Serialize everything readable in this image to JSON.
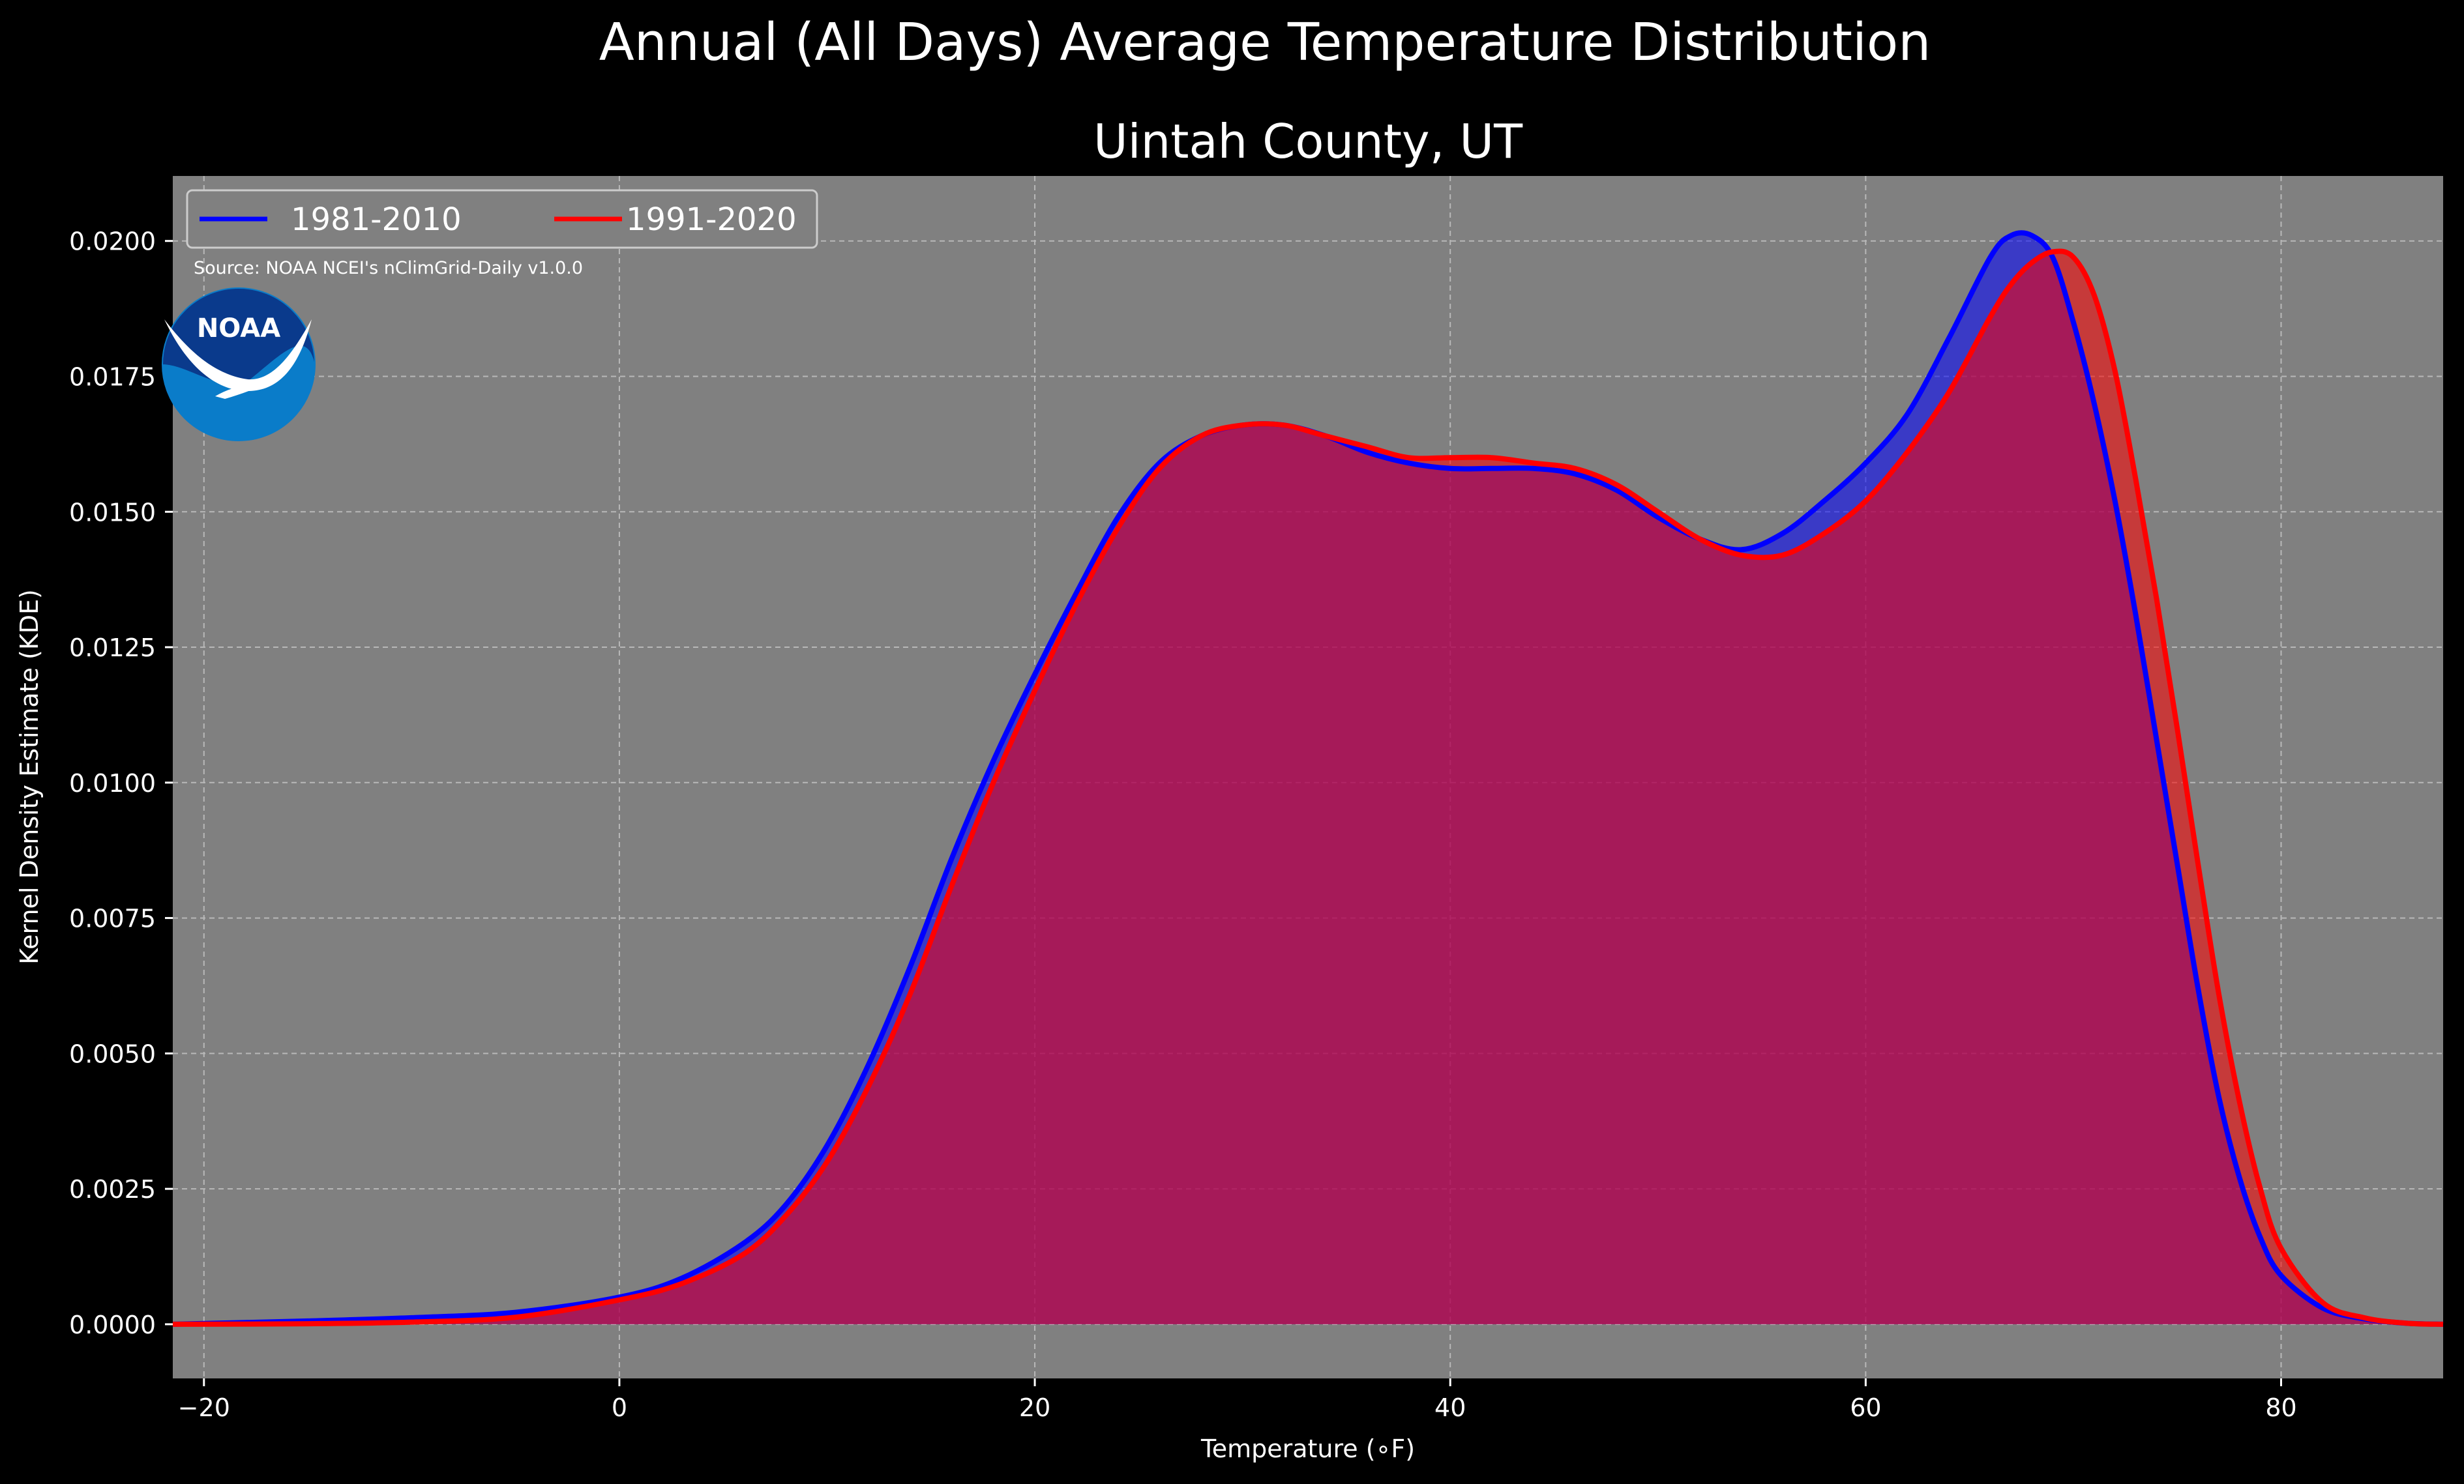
{
  "figure": {
    "suptitle": "Annual (All Days) Average Temperature Distribution",
    "background_color": "#000000",
    "plot_background_color": "#808080"
  },
  "source_note": "Source: NOAA NCEI's nClimGrid-Daily v1.0.0",
  "logo": {
    "text": "NOAA",
    "icon": "noaa-logo"
  },
  "chart_data": {
    "type": "area",
    "title": "Uintah County, UT",
    "xlabel": "Temperature (∘F)",
    "ylabel": "Kernel Density Estimate (KDE)",
    "xlim": [
      -21.5,
      87.8
    ],
    "ylim": [
      -0.001,
      0.0212
    ],
    "xticks": [
      -20,
      0,
      20,
      40,
      60,
      80
    ],
    "yticks": [
      0.0,
      0.0025,
      0.005,
      0.0075,
      0.01,
      0.0125,
      0.015,
      0.0175,
      0.02
    ],
    "ytick_labels": [
      "0.0000",
      "0.0025",
      "0.0050",
      "0.0075",
      "0.0100",
      "0.0125",
      "0.0150",
      "0.0175",
      "0.0200"
    ],
    "grid": true,
    "legend_position": "upper-left",
    "series": [
      {
        "name": "1981-2010",
        "color": "#0000ff",
        "fill_color": "#0000ff",
        "x": [
          -21.5,
          -15,
          -10,
          -5,
          0,
          3,
          6,
          8,
          10,
          12,
          14,
          16,
          18,
          20,
          22,
          24,
          26,
          28,
          30,
          32,
          34,
          36,
          38,
          40,
          42,
          44,
          46,
          48,
          50,
          52,
          54,
          56,
          58,
          60,
          62,
          64,
          66,
          67,
          68,
          69,
          70,
          71,
          72,
          73,
          74,
          75,
          76,
          77,
          78,
          79,
          80,
          82,
          84,
          86,
          87.8
        ],
        "y": [
          0.0,
          6e-05,
          0.00012,
          0.00022,
          0.0005,
          0.00085,
          0.0015,
          0.0022,
          0.0033,
          0.0048,
          0.0066,
          0.0086,
          0.0104,
          0.012,
          0.0135,
          0.0149,
          0.0159,
          0.0164,
          0.0166,
          0.0166,
          0.0164,
          0.0161,
          0.0159,
          0.0158,
          0.0158,
          0.0158,
          0.0157,
          0.0154,
          0.0149,
          0.0145,
          0.0143,
          0.0146,
          0.0152,
          0.0159,
          0.0168,
          0.0182,
          0.0197,
          0.0201,
          0.0201,
          0.0197,
          0.0185,
          0.017,
          0.0152,
          0.0131,
          0.0108,
          0.0085,
          0.0062,
          0.0042,
          0.0027,
          0.0016,
          0.0009,
          0.0003,
          0.0001,
          2e-05,
          0.0
        ]
      },
      {
        "name": "1991-2020",
        "color": "#ff0000",
        "fill_color": "#ff0000",
        "x": [
          -21.5,
          -15,
          -10,
          -5,
          0,
          3,
          6,
          8,
          10,
          12,
          14,
          16,
          18,
          20,
          22,
          24,
          26,
          28,
          30,
          32,
          34,
          36,
          38,
          40,
          42,
          44,
          46,
          48,
          50,
          52,
          54,
          56,
          58,
          60,
          62,
          64,
          66,
          67,
          68,
          69,
          70,
          71,
          72,
          73,
          74,
          75,
          76,
          77,
          78,
          79,
          80,
          82,
          84,
          86,
          87.8
        ],
        "y": [
          0.0,
          1e-05,
          4e-05,
          0.00013,
          0.00045,
          0.00075,
          0.0013,
          0.002,
          0.003,
          0.0044,
          0.0061,
          0.0081,
          0.01,
          0.0117,
          0.0133,
          0.0147,
          0.0158,
          0.0164,
          0.0166,
          0.0166,
          0.0164,
          0.0162,
          0.016,
          0.016,
          0.016,
          0.0159,
          0.0158,
          0.0155,
          0.015,
          0.0145,
          0.0142,
          0.0142,
          0.0146,
          0.0152,
          0.0161,
          0.0172,
          0.0186,
          0.0192,
          0.0196,
          0.0198,
          0.0197,
          0.019,
          0.0176,
          0.0156,
          0.0134,
          0.011,
          0.0085,
          0.0061,
          0.0041,
          0.0025,
          0.0014,
          0.0004,
          0.00012,
          2e-05,
          0.0
        ]
      }
    ]
  }
}
